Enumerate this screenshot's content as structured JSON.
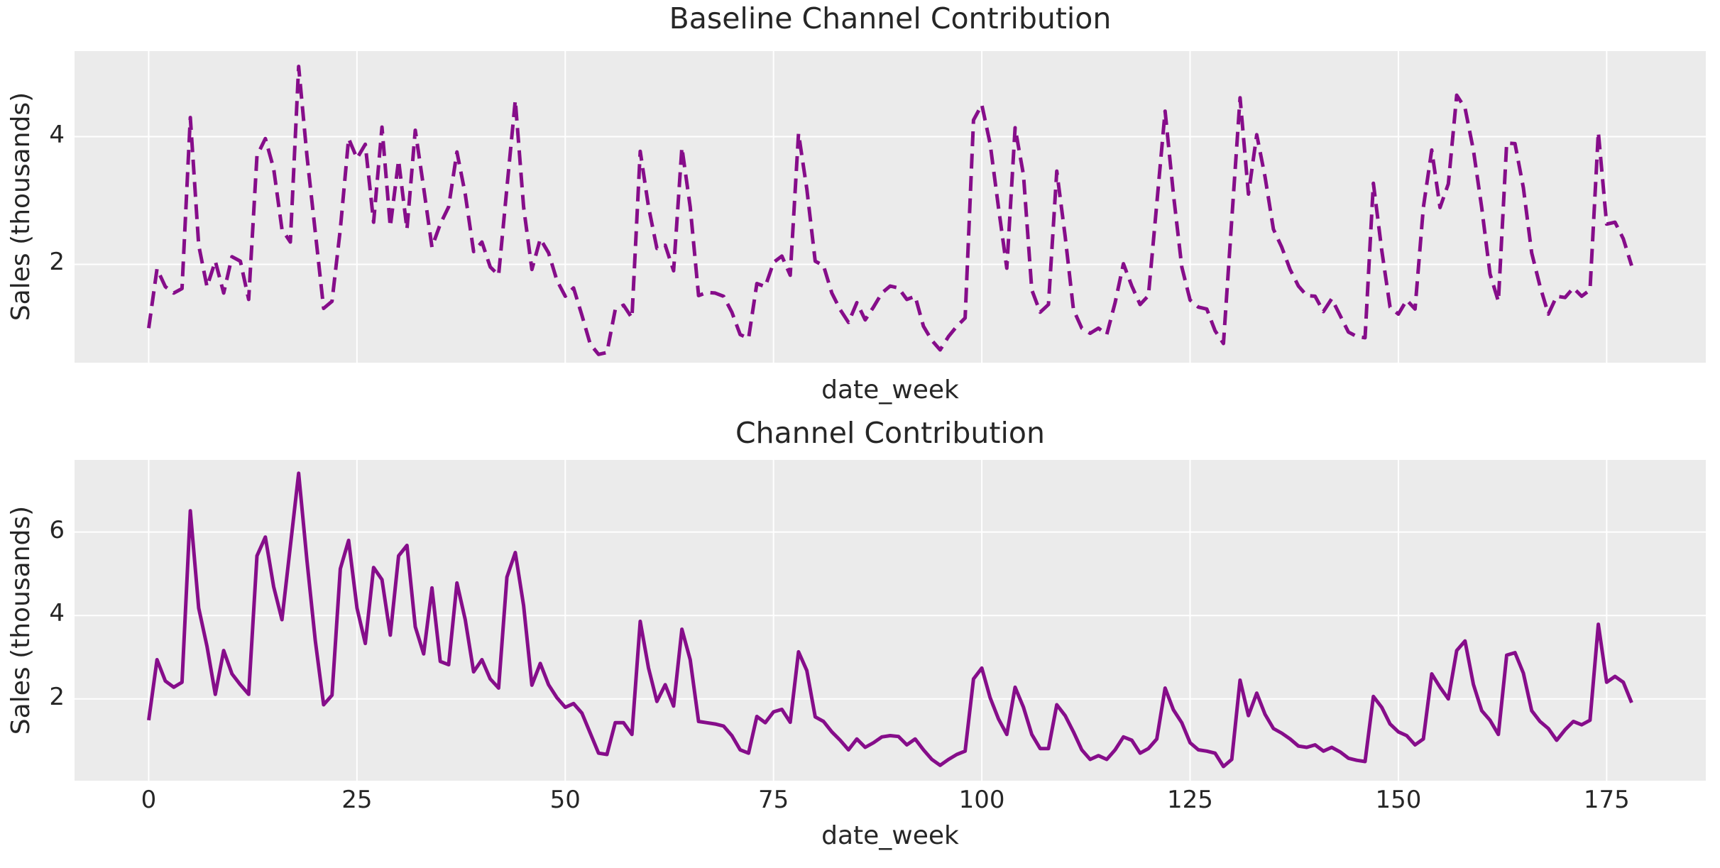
{
  "figure": {
    "background": "#ffffff",
    "panel_background": "#ebebeb",
    "grid_color": "#ffffff",
    "text_color": "#262626",
    "accent_line_color": "#860d8a"
  },
  "chart_data": [
    {
      "type": "line",
      "title": "Baseline Channel Contribution",
      "xlabel": "date_week",
      "ylabel": "Sales (thousands)",
      "legend": null,
      "grid": true,
      "line_color": "#860d8a",
      "line_style": "dashed",
      "x_start": 0,
      "x_step": 1,
      "xlim": [
        -8.9,
        186.9
      ],
      "ylim": [
        0.46,
        5.34
      ],
      "xticks": [
        0,
        25,
        50,
        75,
        100,
        125,
        150,
        175
      ],
      "show_xtick_labels": false,
      "yticks": [
        2,
        4
      ],
      "values": [
        1.0,
        1.93,
        1.65,
        1.55,
        1.62,
        4.3,
        2.3,
        1.65,
        2.05,
        1.55,
        2.12,
        2.05,
        1.45,
        3.7,
        3.97,
        3.5,
        2.55,
        2.35,
        5.1,
        3.7,
        2.5,
        1.31,
        1.42,
        2.55,
        3.97,
        3.66,
        3.88,
        2.66,
        4.15,
        2.59,
        3.63,
        2.55,
        4.1,
        3.2,
        2.27,
        2.63,
        2.9,
        3.76,
        3.1,
        2.2,
        2.35,
        1.96,
        1.83,
        3.2,
        4.57,
        2.9,
        1.92,
        2.4,
        2.18,
        1.75,
        1.5,
        1.63,
        1.2,
        0.75,
        0.59,
        0.62,
        1.29,
        1.36,
        1.16,
        3.77,
        2.9,
        2.25,
        2.3,
        1.9,
        3.83,
        2.9,
        1.51,
        1.56,
        1.55,
        1.5,
        1.25,
        0.9,
        0.84,
        1.7,
        1.65,
        2.03,
        2.13,
        1.83,
        4.05,
        3.18,
        2.05,
        1.98,
        1.55,
        1.29,
        1.09,
        1.4,
        1.13,
        1.33,
        1.55,
        1.66,
        1.63,
        1.45,
        1.5,
        1.03,
        0.81,
        0.66,
        0.87,
        1.03,
        1.16,
        4.26,
        4.5,
        3.89,
        2.89,
        1.94,
        4.14,
        3.4,
        1.6,
        1.25,
        1.37,
        3.46,
        2.44,
        1.29,
        1.0,
        0.92,
        1.0,
        0.9,
        1.4,
        2.01,
        1.66,
        1.37,
        1.51,
        2.95,
        4.4,
        3.1,
        1.96,
        1.44,
        1.33,
        1.3,
        0.96,
        0.76,
        2.7,
        4.61,
        3.1,
        4.03,
        3.37,
        2.55,
        2.27,
        1.92,
        1.66,
        1.51,
        1.5,
        1.26,
        1.46,
        1.2,
        0.94,
        0.87,
        0.85,
        3.27,
        2.22,
        1.33,
        1.22,
        1.44,
        1.3,
        2.89,
        3.79,
        2.89,
        3.26,
        4.65,
        4.45,
        3.79,
        2.89,
        1.85,
        1.42,
        3.9,
        3.89,
        3.2,
        2.18,
        1.66,
        1.22,
        1.5,
        1.48,
        1.63,
        1.5,
        1.6,
        4.07,
        2.63,
        2.66,
        2.4,
        1.98
      ]
    },
    {
      "type": "line",
      "title": "Channel Contribution",
      "xlabel": "date_week",
      "ylabel": "Sales (thousands)",
      "legend": null,
      "grid": true,
      "line_color": "#860d8a",
      "line_style": "solid",
      "x_start": 0,
      "x_step": 1,
      "xlim": [
        -8.9,
        186.9
      ],
      "ylim": [
        0.04,
        7.73
      ],
      "xticks": [
        0,
        25,
        50,
        75,
        100,
        125,
        150,
        175
      ],
      "show_xtick_labels": true,
      "yticks": [
        2,
        4,
        6
      ],
      "values": [
        1.49,
        2.94,
        2.43,
        2.28,
        2.4,
        6.51,
        4.18,
        3.26,
        2.11,
        3.16,
        2.6,
        2.34,
        2.11,
        5.43,
        5.88,
        4.69,
        3.9,
        5.66,
        7.41,
        5.32,
        3.39,
        1.86,
        2.09,
        5.12,
        5.8,
        4.18,
        3.33,
        5.15,
        4.86,
        3.53,
        5.43,
        5.68,
        3.73,
        3.08,
        4.66,
        2.9,
        2.82,
        4.78,
        3.9,
        2.65,
        2.94,
        2.48,
        2.26,
        4.92,
        5.51,
        4.24,
        2.33,
        2.85,
        2.34,
        2.03,
        1.8,
        1.89,
        1.66,
        1.18,
        0.7,
        0.67,
        1.43,
        1.43,
        1.15,
        3.86,
        2.74,
        1.94,
        2.34,
        1.83,
        3.67,
        2.94,
        1.46,
        1.43,
        1.4,
        1.35,
        1.12,
        0.78,
        0.7,
        1.58,
        1.43,
        1.69,
        1.75,
        1.44,
        3.13,
        2.68,
        1.57,
        1.46,
        1.21,
        1.01,
        0.78,
        1.04,
        0.84,
        0.95,
        1.09,
        1.12,
        1.1,
        0.9,
        1.04,
        0.78,
        0.55,
        0.41,
        0.55,
        0.67,
        0.75,
        2.48,
        2.74,
        2.03,
        1.52,
        1.15,
        2.28,
        1.8,
        1.15,
        0.81,
        0.81,
        1.86,
        1.6,
        1.21,
        0.78,
        0.55,
        0.64,
        0.55,
        0.78,
        1.09,
        1.01,
        0.7,
        0.81,
        1.04,
        2.26,
        1.74,
        1.43,
        0.95,
        0.78,
        0.75,
        0.7,
        0.38,
        0.55,
        2.45,
        1.6,
        2.14,
        1.63,
        1.29,
        1.18,
        1.04,
        0.87,
        0.84,
        0.9,
        0.75,
        0.84,
        0.73,
        0.58,
        0.53,
        0.5,
        2.06,
        1.8,
        1.4,
        1.21,
        1.12,
        0.9,
        1.04,
        2.6,
        2.28,
        2.0,
        3.16,
        3.39,
        2.35,
        1.72,
        1.49,
        1.15,
        3.05,
        3.11,
        2.62,
        1.72,
        1.46,
        1.29,
        1.01,
        1.26,
        1.46,
        1.38,
        1.49,
        3.79,
        2.4,
        2.54,
        2.4,
        1.91
      ]
    }
  ]
}
